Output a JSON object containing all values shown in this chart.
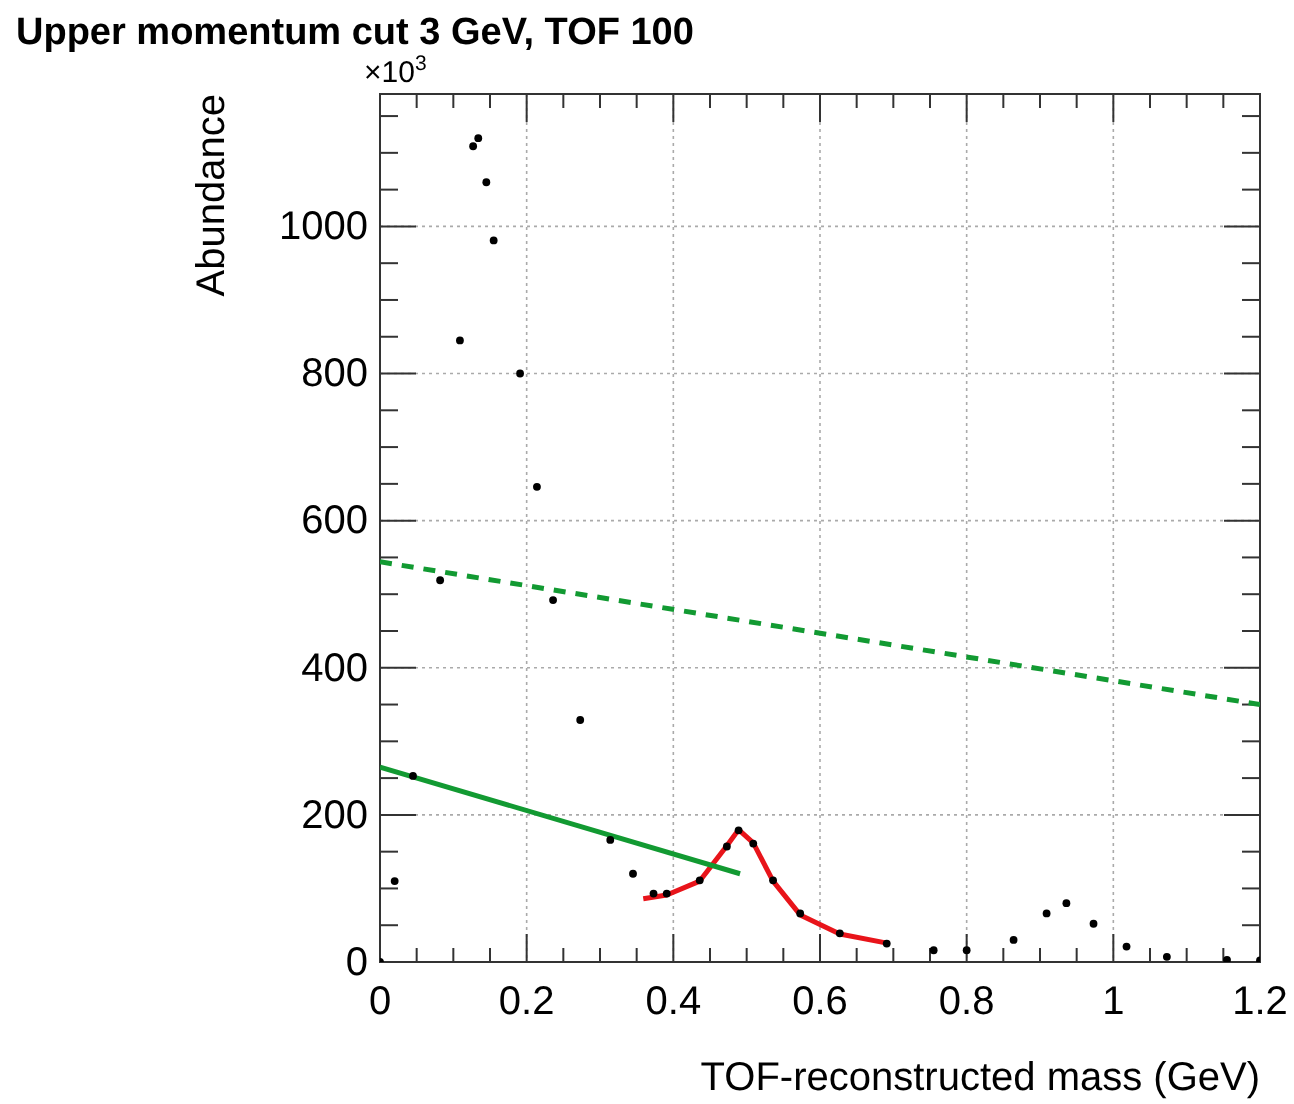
{
  "chart_data": {
    "type": "scatter",
    "title": "Upper momentum cut 3 GeV, TOF 100",
    "xlabel": "TOF-reconstructed mass (GeV)",
    "ylabel": "Abundance",
    "annotations": [
      "×10$^{3}$"
    ],
    "xlim": [
      0,
      1.2
    ],
    "ylim": [
      0,
      1180
    ],
    "xticks": [
      0,
      {
        "value": 0.05,
        "label": null
      },
      {
        "value": 0.1,
        "label": null
      },
      {
        "value": 0.15,
        "label": null
      },
      0.2,
      {
        "value": 0.25,
        "label": null
      },
      {
        "value": 0.3,
        "label": null
      },
      {
        "value": 0.35,
        "label": null
      },
      0.4,
      {
        "value": 0.45,
        "label": null
      },
      {
        "value": 0.5,
        "label": null
      },
      {
        "value": 0.55,
        "label": null
      },
      0.6,
      {
        "value": 0.65,
        "label": null
      },
      {
        "value": 0.7,
        "label": null
      },
      {
        "value": 0.75,
        "label": null
      },
      0.8,
      {
        "value": 0.85,
        "label": null
      },
      {
        "value": 0.9,
        "label": null
      },
      {
        "value": 0.95,
        "label": null
      },
      1,
      {
        "value": 1.05,
        "label": null
      },
      {
        "value": 1.1,
        "label": null
      },
      {
        "value": 1.15,
        "label": null
      },
      1.2
    ],
    "yticks": [
      0,
      {
        "value": 50,
        "label": null
      },
      {
        "value": 100,
        "label": null
      },
      {
        "value": 150,
        "label": null
      },
      200,
      {
        "value": 250,
        "label": null
      },
      {
        "value": 300,
        "label": null
      },
      {
        "value": 350,
        "label": null
      },
      400,
      {
        "value": 450,
        "label": null
      },
      {
        "value": 500,
        "label": null
      },
      {
        "value": 550,
        "label": null
      },
      600,
      {
        "value": 650,
        "label": null
      },
      {
        "value": 700,
        "label": null
      },
      {
        "value": 750,
        "label": null
      },
      800,
      {
        "value": 850,
        "label": null
      },
      {
        "value": 900,
        "label": null
      },
      {
        "value": 950,
        "label": null
      },
      1000,
      {
        "value": 1050,
        "label": null
      },
      {
        "value": 1100,
        "label": null
      },
      {
        "value": 1150,
        "label": null
      }
    ],
    "grid": true,
    "marker": "circle",
    "series": [
      {
        "color": "#000000",
        "x": [
          0,
          0.02,
          0.045,
          0.082,
          0.109,
          0.127,
          0.134,
          0.145,
          0.155,
          0.191,
          0.214,
          0.236,
          0.273,
          0.314,
          0.345,
          0.373,
          0.391,
          0.436,
          0.473,
          0.489,
          0.509,
          0.536,
          0.573,
          0.627,
          0.691,
          0.755,
          0.8,
          0.864,
          0.909,
          0.936,
          0.973,
          1.018,
          1.073,
          1.155,
          1.2
        ],
        "values": [
          0,
          110,
          253,
          519,
          845,
          1109,
          1120,
          1060,
          981,
          800,
          646,
          492,
          329,
          166,
          120,
          93,
          93,
          111,
          157,
          179,
          161,
          111,
          66,
          39,
          25,
          16,
          16,
          30,
          66,
          80,
          52,
          21,
          7,
          3,
          2
        ]
      },
      {
        "type": "line",
        "marker": "none",
        "line_style": "solid",
        "color": "#e8141a",
        "x": [
          0.359,
          0.391,
          0.436,
          0.473,
          0.489,
          0.509,
          0.536,
          0.573,
          0.627,
          0.695
        ],
        "values": [
          86,
          91,
          110,
          158,
          180,
          162,
          110,
          64,
          38,
          25
        ]
      },
      {
        "type": "line",
        "marker": "none",
        "line_style": "solid",
        "color": "#129a32",
        "x": [
          0,
          0.491
        ],
        "values": [
          265,
          120
        ]
      },
      {
        "type": "line",
        "marker": "none",
        "line_style": "dashed",
        "color": "#129a32",
        "x": [
          0,
          1.2
        ],
        "values": [
          544,
          350
        ]
      }
    ]
  }
}
